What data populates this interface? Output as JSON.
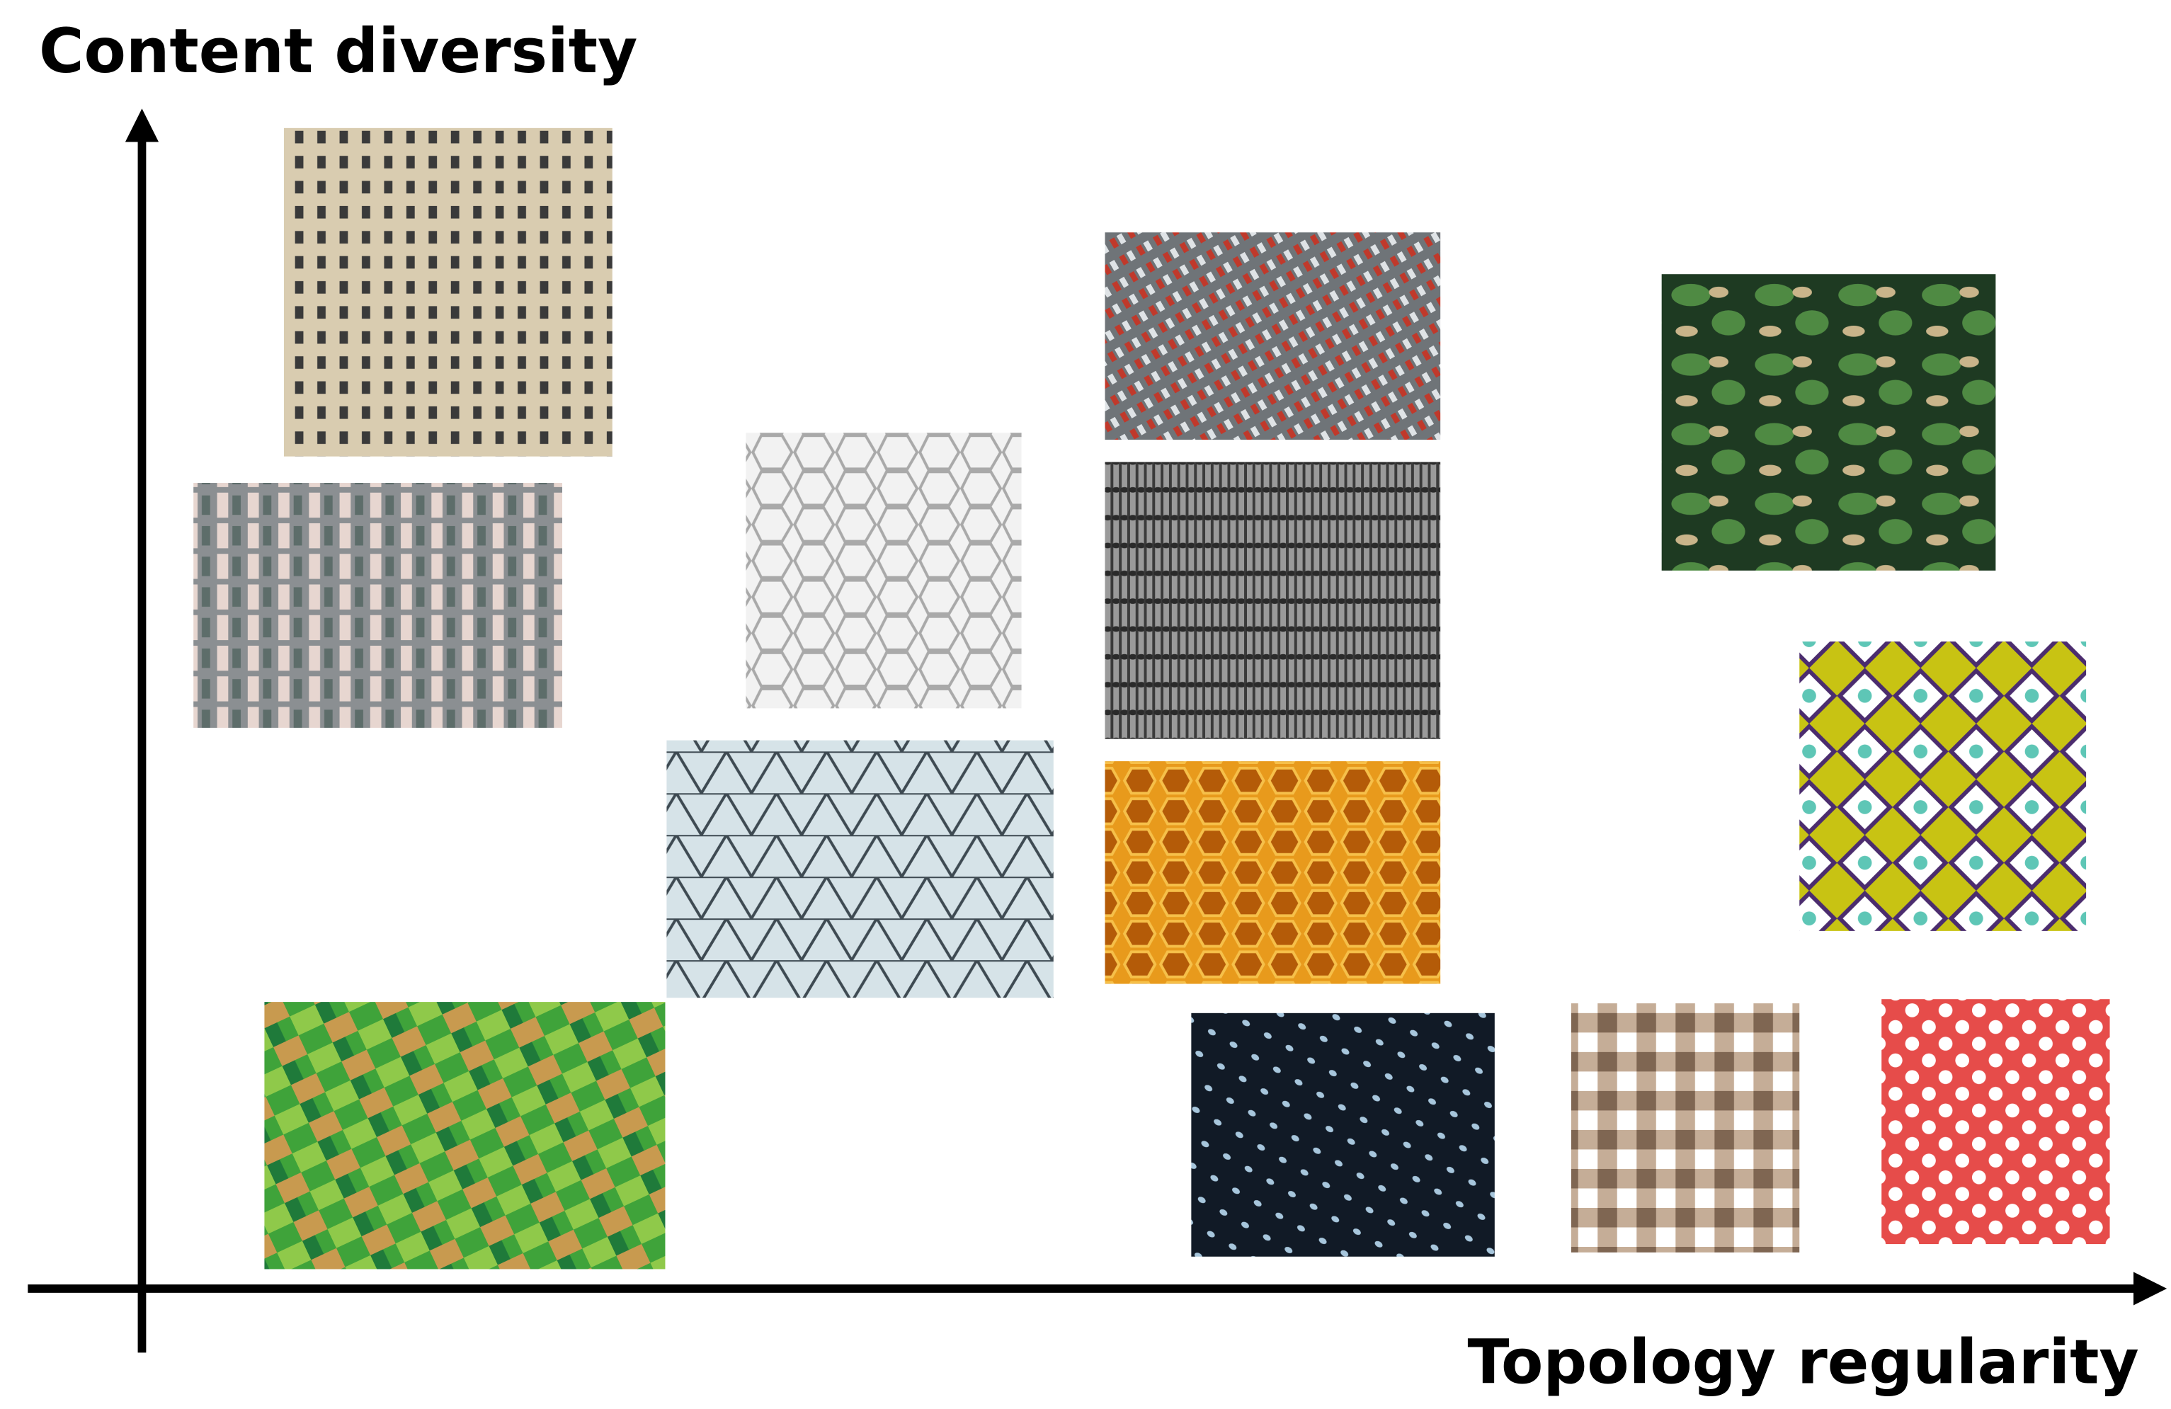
{
  "axes": {
    "y_label": "Content diversity",
    "x_label": "Topology regularity"
  }
}
